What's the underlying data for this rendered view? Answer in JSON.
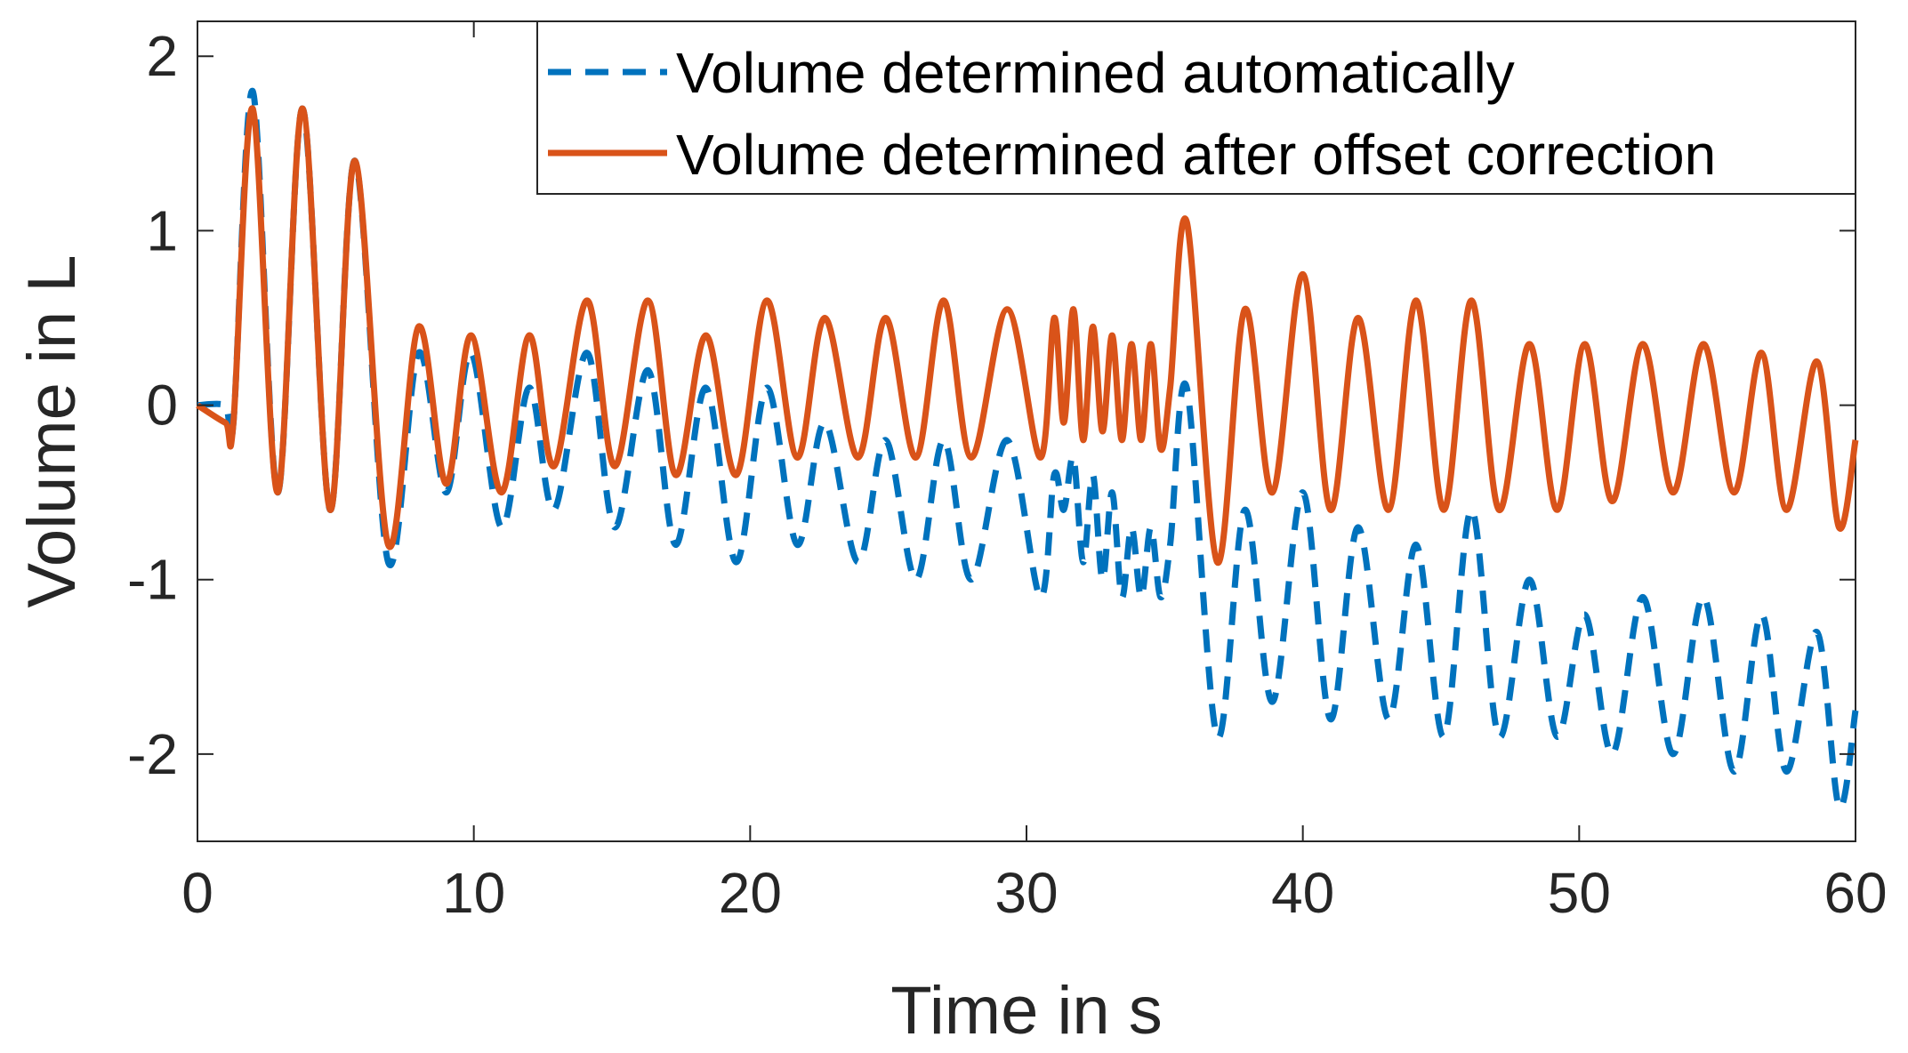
{
  "chart_data": {
    "type": "line",
    "title": "",
    "xlabel": "Time in s",
    "ylabel": "Volume in L",
    "xlim": [
      0,
      60
    ],
    "ylim": [
      -2.5,
      2.2
    ],
    "xticks": [
      0,
      10,
      20,
      30,
      40,
      50,
      60
    ],
    "yticks": [
      -2,
      -1,
      0,
      1,
      2
    ],
    "xtick_labels": [
      "0",
      "10",
      "20",
      "30",
      "40",
      "50",
      "60"
    ],
    "ytick_labels": [
      "-2",
      "-1",
      "0",
      "1",
      "2"
    ],
    "grid": false,
    "legend_position": "top-right",
    "series": [
      {
        "name": "Volume determined automatically",
        "style": "dashed",
        "color": "#0072BD",
        "x": [
          0.0,
          1.0,
          1.3,
          2.0,
          2.9,
          3.8,
          4.8,
          5.7,
          6.9,
          8.0,
          9.0,
          9.9,
          11.0,
          12.0,
          12.9,
          14.1,
          15.1,
          16.3,
          17.3,
          18.4,
          19.5,
          20.6,
          21.7,
          22.7,
          23.9,
          24.9,
          26.0,
          27.0,
          28.0,
          29.3,
          30.5,
          31.0,
          31.35,
          31.7,
          32.05,
          32.4,
          32.75,
          33.1,
          33.45,
          33.8,
          34.15,
          34.5,
          34.85,
          35.2,
          35.8,
          36.9,
          37.9,
          38.9,
          40.0,
          41.0,
          42.0,
          43.1,
          44.1,
          45.1,
          46.1,
          47.1,
          48.2,
          49.2,
          50.2,
          51.2,
          52.3,
          53.4,
          54.5,
          55.6,
          56.6,
          57.5,
          58.6,
          59.4,
          60.0
        ],
        "y": [
          0.0,
          0.0,
          -0.1,
          1.8,
          -0.5,
          1.7,
          -0.6,
          1.4,
          -0.9,
          0.3,
          -0.5,
          0.3,
          -0.7,
          0.1,
          -0.6,
          0.3,
          -0.7,
          0.2,
          -0.8,
          0.1,
          -0.9,
          0.1,
          -0.8,
          -0.1,
          -0.9,
          -0.2,
          -1.0,
          -0.2,
          -1.0,
          -0.2,
          -1.1,
          -0.4,
          -0.6,
          -0.3,
          -0.9,
          -0.4,
          -1.0,
          -0.5,
          -1.1,
          -0.7,
          -1.1,
          -0.7,
          -1.1,
          -0.8,
          0.1,
          -1.9,
          -0.6,
          -1.7,
          -0.5,
          -1.8,
          -0.7,
          -1.8,
          -0.8,
          -1.9,
          -0.6,
          -1.9,
          -1.0,
          -1.9,
          -1.2,
          -2.0,
          -1.1,
          -2.0,
          -1.1,
          -2.1,
          -1.2,
          -2.1,
          -1.3,
          -2.3,
          -1.75
        ]
      },
      {
        "name": "Volume determined after offset correction",
        "style": "solid",
        "color": "#D95319",
        "x": [
          0.0,
          1.0,
          1.3,
          2.0,
          2.9,
          3.8,
          4.8,
          5.7,
          6.9,
          8.0,
          9.0,
          9.9,
          11.0,
          12.0,
          12.9,
          14.1,
          15.1,
          16.3,
          17.3,
          18.4,
          19.5,
          20.6,
          21.7,
          22.7,
          23.9,
          24.9,
          26.0,
          27.0,
          28.0,
          29.3,
          30.5,
          31.0,
          31.35,
          31.7,
          32.05,
          32.4,
          32.75,
          33.1,
          33.45,
          33.8,
          34.15,
          34.5,
          34.85,
          35.2,
          35.8,
          36.9,
          37.9,
          38.9,
          40.0,
          41.0,
          42.0,
          43.1,
          44.1,
          45.1,
          46.1,
          47.1,
          48.2,
          49.2,
          50.2,
          51.2,
          52.3,
          53.4,
          54.5,
          55.6,
          56.6,
          57.5,
          58.6,
          59.4,
          60.0
        ],
        "y": [
          0.0,
          -0.1,
          -0.1,
          1.7,
          -0.5,
          1.7,
          -0.6,
          1.4,
          -0.8,
          0.45,
          -0.45,
          0.4,
          -0.5,
          0.4,
          -0.35,
          0.6,
          -0.35,
          0.6,
          -0.4,
          0.4,
          -0.4,
          0.6,
          -0.3,
          0.5,
          -0.3,
          0.5,
          -0.3,
          0.6,
          -0.3,
          0.55,
          -0.3,
          0.5,
          -0.1,
          0.55,
          -0.2,
          0.45,
          -0.15,
          0.4,
          -0.2,
          0.35,
          -0.2,
          0.35,
          -0.25,
          0.1,
          1.05,
          -0.9,
          0.55,
          -0.5,
          0.75,
          -0.6,
          0.5,
          -0.6,
          0.6,
          -0.6,
          0.6,
          -0.6,
          0.35,
          -0.6,
          0.35,
          -0.55,
          0.35,
          -0.5,
          0.35,
          -0.5,
          0.3,
          -0.6,
          0.25,
          -0.7,
          -0.2
        ]
      }
    ]
  }
}
